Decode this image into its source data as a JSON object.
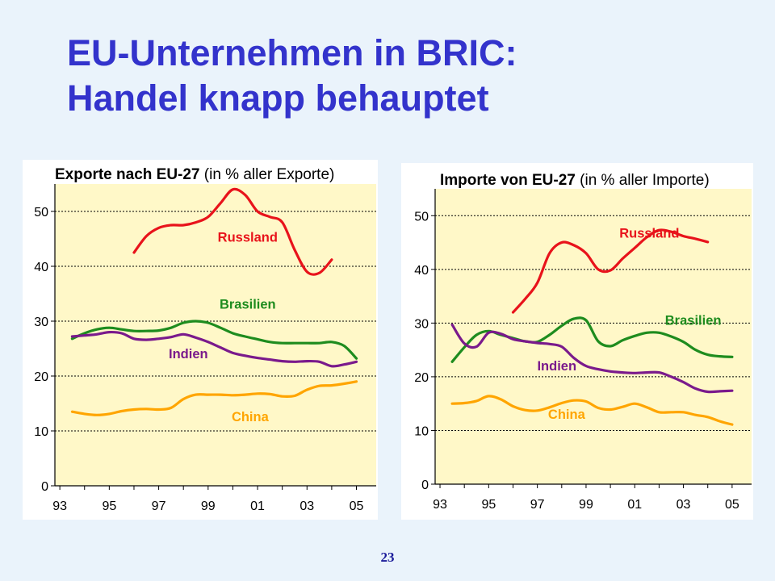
{
  "slide": {
    "title_line1": "EU-Unternehmen in BRIC:",
    "title_line2": "Handel knapp behauptet",
    "page_number": "23"
  },
  "colors": {
    "title": "#3333cc",
    "plot_background": "#fff8c8",
    "Russland": "#e8131b",
    "Brasilien": "#1e8c1e",
    "Indien": "#7a1a8c",
    "China": "#ffa500"
  },
  "chart_data": [
    {
      "type": "line",
      "title_bold": "Exporte nach EU-27",
      "title_rest": " (in % aller Exporte)",
      "xlabel": "",
      "ylabel": "",
      "ylim": [
        0,
        55
      ],
      "xlim": [
        1992.8,
        2005.8
      ],
      "yticks": [
        0,
        10,
        20,
        30,
        40,
        50
      ],
      "xticks": [
        1993,
        1995,
        1997,
        1999,
        2001,
        2003,
        2005
      ],
      "xtick_labels": [
        "93",
        "95",
        "97",
        "99",
        "01",
        "03",
        "05"
      ],
      "grid": true,
      "legend": "inline labels",
      "series": [
        {
          "name": "Russland",
          "x": [
            1996,
            1996.5,
            1997,
            1997.5,
            1998,
            1998.5,
            1999,
            1999.5,
            2000,
            2000.5,
            2001,
            2001.5,
            2002,
            2002.5,
            2003,
            2003.5,
            2004
          ],
          "y": [
            42.5,
            45.5,
            47,
            47.5,
            47.5,
            48,
            49,
            51.5,
            54,
            53,
            50,
            49,
            48,
            43,
            39,
            38.8,
            41.2
          ],
          "label_at": [
            2000.6,
            44.5
          ]
        },
        {
          "name": "Brasilien",
          "x": [
            1993.5,
            1994,
            1994.5,
            1995,
            1995.5,
            1996,
            1996.5,
            1997,
            1997.5,
            1998,
            1998.5,
            1999,
            1999.5,
            2000,
            2000.5,
            2001,
            2001.5,
            2002,
            2002.5,
            2003,
            2003.5,
            2004,
            2004.5,
            2005
          ],
          "y": [
            26.8,
            27.8,
            28.5,
            28.8,
            28.5,
            28.2,
            28.2,
            28.3,
            28.8,
            29.7,
            30,
            29.7,
            28.8,
            27.8,
            27.2,
            26.7,
            26.2,
            26,
            26,
            26,
            26,
            26.2,
            25.5,
            23.2
          ],
          "label_at": [
            2000.6,
            32.3
          ]
        },
        {
          "name": "Indien",
          "x": [
            1993.5,
            1994,
            1994.5,
            1995,
            1995.5,
            1996,
            1996.5,
            1997,
            1997.5,
            1998,
            1998.5,
            1999,
            1999.5,
            2000,
            2000.5,
            2001,
            2001.5,
            2002,
            2002.5,
            2003,
            2003.5,
            2004,
            2004.5,
            2005
          ],
          "y": [
            27.2,
            27.4,
            27.6,
            28,
            27.8,
            26.8,
            26.6,
            26.8,
            27.1,
            27.6,
            27,
            26.2,
            25.2,
            24.2,
            23.7,
            23.3,
            23,
            22.7,
            22.6,
            22.7,
            22.6,
            21.8,
            22.1,
            22.6
          ],
          "label_at": [
            1998.2,
            23.2
          ]
        },
        {
          "name": "China",
          "x": [
            1993.5,
            1994,
            1994.5,
            1995,
            1995.5,
            1996,
            1996.5,
            1997,
            1997.5,
            1998,
            1998.5,
            1999,
            1999.5,
            2000,
            2000.5,
            2001,
            2001.5,
            2002,
            2002.5,
            2003,
            2003.5,
            2004,
            2004.5,
            2005
          ],
          "y": [
            13.5,
            13.1,
            12.9,
            13.1,
            13.6,
            13.9,
            14,
            13.9,
            14.2,
            15.8,
            16.6,
            16.6,
            16.6,
            16.5,
            16.6,
            16.8,
            16.7,
            16.3,
            16.4,
            17.5,
            18.2,
            18.3,
            18.6,
            19
          ],
          "label_at": [
            2000.7,
            11.8
          ]
        }
      ]
    },
    {
      "type": "line",
      "title_bold": "Importe von EU-27",
      "title_rest": " (in % aller Importe)",
      "xlabel": "",
      "ylabel": "",
      "ylim": [
        0,
        55
      ],
      "xlim": [
        1992.8,
        2005.8
      ],
      "yticks": [
        0,
        10,
        20,
        30,
        40,
        50
      ],
      "xticks": [
        1993,
        1995,
        1997,
        1999,
        2001,
        2003,
        2005
      ],
      "xtick_labels": [
        "93",
        "95",
        "97",
        "99",
        "01",
        "03",
        "05"
      ],
      "grid": true,
      "legend": "inline labels",
      "series": [
        {
          "name": "Russland",
          "x": [
            1996,
            1996.5,
            1997,
            1997.5,
            1998,
            1998.5,
            1999,
            1999.5,
            2000,
            2000.5,
            2001,
            2001.5,
            2002,
            2002.5,
            2003,
            2003.5,
            2004
          ],
          "y": [
            32,
            34.5,
            37.5,
            43,
            45,
            44.5,
            43,
            40,
            39.8,
            42,
            44,
            46,
            47.3,
            47,
            46.2,
            45.7,
            45.1
          ],
          "label_at": [
            2001.6,
            45.9
          ]
        },
        {
          "name": "Brasilien",
          "x": [
            1993.5,
            1994,
            1994.5,
            1995,
            1995.5,
            1996,
            1996.5,
            1997,
            1997.5,
            1998,
            1998.5,
            1999,
            1999.5,
            2000,
            2000.5,
            2001,
            2001.5,
            2002,
            2002.5,
            2003,
            2003.5,
            2004,
            2004.5,
            2005
          ],
          "y": [
            22.8,
            25.5,
            27.8,
            28.5,
            27.8,
            27.2,
            26.6,
            26.5,
            27.8,
            29.5,
            30.8,
            30.5,
            26.6,
            25.7,
            26.8,
            27.6,
            28.2,
            28.2,
            27.5,
            26.5,
            25,
            24.1,
            23.8,
            23.7
          ],
          "label_at": [
            2003.4,
            29.7
          ]
        },
        {
          "name": "Indien",
          "x": [
            1993.5,
            1994,
            1994.5,
            1995,
            1995.5,
            1996,
            1996.5,
            1997,
            1997.5,
            1998,
            1998.5,
            1999,
            1999.5,
            2000,
            2000.5,
            2001,
            2001.5,
            2002,
            2002.5,
            2003,
            2003.5,
            2004,
            2004.5,
            2005
          ],
          "y": [
            29.7,
            26.2,
            25.6,
            28.2,
            28,
            27,
            26.6,
            26.3,
            26.1,
            25.6,
            23.5,
            22,
            21.4,
            21,
            20.8,
            20.7,
            20.8,
            20.8,
            20,
            19,
            17.8,
            17.2,
            17.3,
            17.4
          ],
          "label_at": [
            1997.8,
            21.2
          ]
        },
        {
          "name": "China",
          "x": [
            1993.5,
            1994,
            1994.5,
            1995,
            1995.5,
            1996,
            1996.5,
            1997,
            1997.5,
            1998,
            1998.5,
            1999,
            1999.5,
            2000,
            2000.5,
            2001,
            2001.5,
            2002,
            2002.5,
            2003,
            2003.5,
            2004,
            2004.5,
            2005
          ],
          "y": [
            15,
            15.1,
            15.5,
            16.4,
            15.8,
            14.5,
            13.8,
            13.7,
            14.3,
            15.1,
            15.6,
            15.4,
            14.2,
            13.9,
            14.4,
            15,
            14.3,
            13.4,
            13.4,
            13.4,
            12.9,
            12.5,
            11.7,
            11.1
          ],
          "label_at": [
            1998.2,
            12.2
          ]
        }
      ]
    }
  ]
}
